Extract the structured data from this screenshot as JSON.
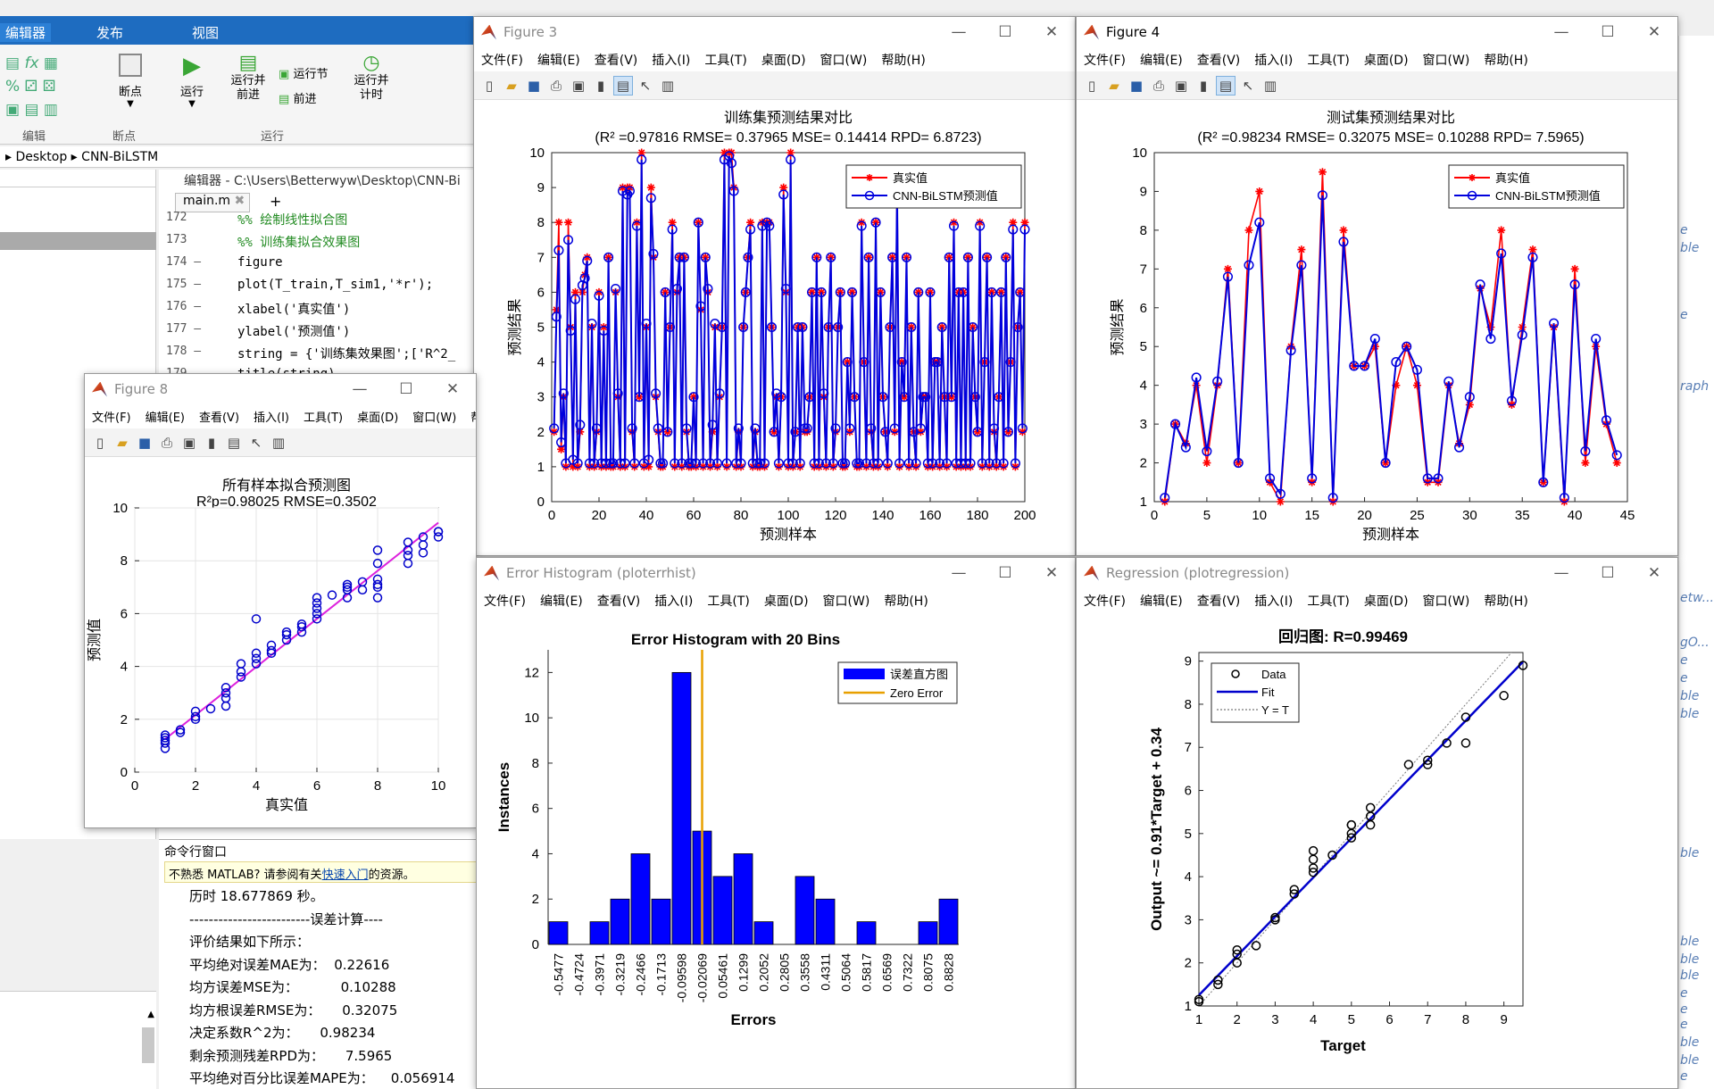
{
  "ribbon": {
    "tabs": [
      "编辑器",
      "发布",
      "视图"
    ],
    "buttons": [
      {
        "label": "断点",
        "icon": "breakpoint-icon"
      },
      {
        "label": "运行",
        "icon": "run-icon"
      },
      {
        "label": "运行并\n前进",
        "icon": "run-advance-icon"
      },
      {
        "label": "运行节",
        "icon": "run-section-icon"
      },
      {
        "label": "前进",
        "icon": "advance-icon"
      },
      {
        "label": "运行并\n计时",
        "icon": "run-time-icon"
      }
    ],
    "groups": [
      "编辑",
      "断点",
      "运行"
    ]
  },
  "path": {
    "parts": [
      "Desktop",
      "CNN-BiLSTM"
    ]
  },
  "editor": {
    "title": "编辑器 - C:\\Users\\Betterwyw\\Desktop\\CNN-Bi",
    "tab": "main.m",
    "lines": [
      {
        "n": "172",
        "code": "%% 绘制线性拟合图"
      },
      {
        "n": "173",
        "code": "%% 训练集拟合效果图"
      },
      {
        "n": "174 —",
        "code": "figure"
      },
      {
        "n": "175 —",
        "code": "plot(T_train,T_sim1,'*r');"
      },
      {
        "n": "176 —",
        "code": "xlabel('真实值')"
      },
      {
        "n": "177 —",
        "code": "ylabel('预测值')"
      },
      {
        "n": "178 —",
        "code": "string = {'训练集效果图';['R^2_"
      },
      {
        "n": "179 —",
        "code": "title(string)"
      }
    ]
  },
  "cmdwin": {
    "title": "命令行窗口",
    "notice": "不熟悉 MATLAB? 请参阅有关",
    "notice_link": "快速入门",
    "notice_end": "的资源。",
    "lines": [
      "历时 18.677869 秒。",
      "-------------------------误差计算----",
      "评价结果如下所示：",
      "平均绝对误差MAE为：  0.22616",
      "均方误差MSE为：          0.10288",
      "均方根误差RMSE为：     0.32075",
      "决定系数R^2为：     0.98234",
      "剩余预测残差RPD为：     7.5965",
      "平均绝对百分比误差MAPE为：    0.056914"
    ]
  },
  "right_fragments": [
    "e",
    "ble",
    "e",
    "raph",
    "etw...",
    "gO...",
    "e",
    "e",
    "ble",
    "ble",
    "ble",
    "ble",
    "ble",
    "ble",
    "e",
    "e",
    "e",
    "ble",
    "ble",
    "e"
  ],
  "fig3": {
    "title": "Figure 3",
    "menu": [
      "文件(F)",
      "编辑(E)",
      "查看(V)",
      "插入(I)",
      "工具(T)",
      "桌面(D)",
      "窗口(W)",
      "帮助(H)"
    ],
    "chart_data": {
      "type": "line",
      "title": "训练集预测结果对比",
      "subtitle": "(R² =0.97816 RMSE= 0.37965 MSE= 0.14414 RPD= 6.8723)",
      "xlabel": "预测样本",
      "ylabel": "预测结果",
      "xlim": [
        0,
        200
      ],
      "ylim": [
        0,
        10
      ],
      "xticks": [
        0,
        20,
        40,
        60,
        80,
        100,
        120,
        140,
        160,
        180,
        200
      ],
      "yticks": [
        0,
        1,
        2,
        3,
        4,
        5,
        6,
        7,
        8,
        9,
        10
      ],
      "legend": "top-right",
      "series": [
        {
          "name": "真实值",
          "color": "#ff0000",
          "marker": "*",
          "values": [
            2,
            5.5,
            8,
            1.5,
            3,
            1,
            8,
            5,
            1,
            6,
            1,
            2,
            6,
            6.5,
            7,
            1,
            5,
            1,
            2,
            6,
            1,
            5,
            1,
            7,
            1,
            1,
            6,
            3,
            1,
            9,
            1,
            9,
            9,
            2,
            1,
            8,
            3,
            10,
            1,
            5,
            1,
            9,
            7,
            3,
            2,
            1,
            1,
            6,
            2,
            5,
            8,
            1,
            6,
            7,
            1,
            7,
            2,
            1,
            1,
            3,
            1,
            8,
            5.5,
            1,
            7,
            6,
            1,
            2,
            5,
            1,
            3,
            5,
            10,
            1,
            10,
            10,
            9,
            1,
            2,
            1,
            5,
            6,
            7,
            8,
            1,
            2,
            1,
            1,
            8,
            1,
            8,
            8,
            5,
            2,
            3,
            1,
            3,
            9,
            6,
            1,
            10,
            1,
            2,
            5,
            1,
            5,
            2,
            2,
            3,
            6,
            1,
            7,
            1,
            6,
            3,
            1,
            5,
            7,
            1,
            2,
            5,
            6,
            1,
            1,
            4,
            2,
            6,
            3,
            1,
            1,
            8,
            4,
            1,
            7,
            2,
            1,
            8,
            1,
            6,
            3,
            2,
            1,
            5,
            7,
            2,
            9,
            1,
            4,
            3,
            7,
            1,
            5,
            2,
            1,
            6,
            2,
            3,
            3,
            1,
            6,
            1,
            4,
            4,
            1,
            5,
            3,
            1,
            7,
            3,
            8,
            1,
            6,
            1,
            6,
            1,
            7,
            1,
            5,
            3,
            2,
            8,
            1,
            4,
            7,
            1,
            6,
            2,
            1,
            3,
            6,
            1,
            7,
            2,
            4,
            8,
            1,
            5,
            6,
            2,
            8
          ]
        },
        {
          "name": "CNN-BiLSTM预测值",
          "color": "#0000dd",
          "marker": "o",
          "values": [
            2.1,
            5.3,
            7.2,
            1.7,
            3.1,
            1.1,
            7.5,
            4.9,
            1.2,
            5.8,
            1.1,
            2.2,
            6.2,
            6.4,
            6.9,
            1.1,
            5.1,
            1.1,
            2.1,
            5.9,
            1.1,
            4.9,
            1.1,
            7,
            1.1,
            1.1,
            6.1,
            3.1,
            1.1,
            8.9,
            1.1,
            8.8,
            8.9,
            2.1,
            1.1,
            7.9,
            3,
            9.8,
            1.1,
            5.1,
            1.2,
            8.7,
            7.1,
            3.1,
            2.1,
            1.1,
            1.1,
            6,
            2,
            5,
            7.8,
            1.1,
            6.1,
            7,
            1.1,
            7,
            2.1,
            1.1,
            1.1,
            3,
            1.1,
            8,
            5.6,
            1.1,
            7,
            6.1,
            1.1,
            2.2,
            5.1,
            1.1,
            3.1,
            5,
            9.8,
            1.1,
            9.9,
            9.7,
            8.9,
            1.1,
            2.1,
            1.1,
            5,
            6,
            7,
            7.8,
            1.1,
            2.1,
            1.1,
            1.1,
            7.9,
            1.1,
            8,
            7.9,
            5,
            2,
            3.1,
            1.1,
            3,
            8.8,
            6.1,
            1.1,
            9.8,
            1.1,
            2,
            5,
            1.1,
            5,
            2.1,
            2.1,
            3,
            6,
            1.1,
            7,
            1.1,
            6,
            3.1,
            1.1,
            5,
            7,
            1.1,
            2.1,
            5,
            6,
            1.1,
            1.1,
            4,
            2.1,
            6,
            3,
            1.1,
            1.1,
            7.9,
            4,
            1.1,
            7,
            2.1,
            1.1,
            8,
            1.1,
            6,
            3,
            2,
            1.1,
            5,
            7,
            2.1,
            8.9,
            1.1,
            4,
            3,
            7,
            1.1,
            5,
            2,
            1.1,
            6,
            2.1,
            3,
            3,
            1.1,
            6,
            1.1,
            4,
            4,
            1.1,
            5,
            3,
            1.1,
            7,
            3,
            7.9,
            1.1,
            6,
            1.1,
            6,
            1.1,
            7,
            1.1,
            5,
            3,
            2,
            7.9,
            1.1,
            4,
            7,
            1.1,
            6,
            2.1,
            1.1,
            3,
            6,
            1.1,
            7,
            2,
            4,
            7.8,
            1.1,
            5,
            6,
            2.1,
            7.8
          ]
        }
      ]
    }
  },
  "fig4": {
    "title": "Figure 4",
    "menu": [
      "文件(F)",
      "编辑(E)",
      "查看(V)",
      "插入(I)",
      "工具(T)",
      "桌面(D)",
      "窗口(W)",
      "帮助(H)"
    ],
    "chart_data": {
      "type": "line",
      "title": "测试集预测结果对比",
      "subtitle": "(R² =0.98234 RMSE= 0.32075 MSE= 0.10288 RPD= 7.5965)",
      "xlabel": "预测样本",
      "ylabel": "预测结果",
      "xlim": [
        0,
        45
      ],
      "ylim": [
        1,
        10
      ],
      "xticks": [
        0,
        5,
        10,
        15,
        20,
        25,
        30,
        35,
        40,
        45
      ],
      "yticks": [
        1,
        2,
        3,
        4,
        5,
        6,
        7,
        8,
        9,
        10
      ],
      "legend": "top-right",
      "series": [
        {
          "name": "真实值",
          "color": "#ff0000",
          "marker": "*",
          "values": [
            1,
            3,
            2.5,
            4,
            2,
            4,
            7,
            2,
            8,
            9,
            1.5,
            1,
            5,
            7.5,
            1.5,
            9.5,
            1,
            8,
            4.5,
            4.5,
            5,
            2,
            4,
            5,
            4,
            1.5,
            1.5,
            4,
            2.5,
            3.5,
            6.5,
            5.5,
            8,
            3.5,
            5.5,
            7.5,
            1.5,
            5.5,
            1,
            7,
            2,
            5,
            3,
            2
          ]
        },
        {
          "name": "CNN-BiLSTM预测值",
          "color": "#0000dd",
          "marker": "o",
          "values": [
            1.1,
            3,
            2.4,
            4.2,
            2.3,
            4.1,
            6.8,
            2,
            7.1,
            8.2,
            1.6,
            1.2,
            4.9,
            7.1,
            1.6,
            8.9,
            1.1,
            7.7,
            4.5,
            4.5,
            5.2,
            2,
            4.6,
            5,
            4.4,
            1.6,
            1.6,
            4.1,
            2.4,
            3.7,
            6.6,
            5.2,
            7.4,
            3.6,
            5.3,
            7.3,
            1.5,
            5.6,
            1.1,
            6.6,
            2.3,
            5.2,
            3.1,
            2.2
          ]
        }
      ]
    }
  },
  "fig8": {
    "title": "Figure 8",
    "menu": [
      "文件(F)",
      "编辑(E)",
      "查看(V)",
      "插入(I)",
      "工具(T)",
      "桌面(D)",
      "窗口(W)",
      "帮助(H)"
    ],
    "chart_data": {
      "type": "scatter",
      "title": "所有样本拟合预测图",
      "subtitle": "R²p=0.98025  RMSE=0.3502",
      "xlabel": "真实值",
      "ylabel": "预测值",
      "xlim": [
        0,
        10
      ],
      "ylim": [
        0,
        10
      ],
      "xticks": [
        0,
        2,
        4,
        6,
        8,
        10
      ],
      "yticks": [
        0,
        2,
        4,
        6,
        8,
        10
      ],
      "fit": {
        "slope": 0.91,
        "intercept": 0.34,
        "color": "#dd22dd"
      },
      "x": [
        1,
        1,
        1,
        1,
        1,
        1.5,
        1.5,
        2,
        2,
        2,
        2.5,
        3,
        3,
        3,
        3,
        3.5,
        3.5,
        3.5,
        4,
        4,
        4,
        4,
        4.5,
        4.5,
        4.5,
        5,
        5,
        5,
        5.5,
        5.5,
        5.5,
        6,
        6,
        6,
        6,
        6,
        6.5,
        7,
        7,
        7,
        7,
        7.5,
        7.5,
        8,
        8,
        8,
        8,
        8,
        8,
        9,
        9,
        9,
        9,
        9.5,
        9.5,
        9.5,
        10,
        10,
        10
      ],
      "y": [
        0.9,
        1.1,
        1.2,
        1.3,
        1.4,
        1.5,
        1.6,
        2,
        2.1,
        2.3,
        2.4,
        2.5,
        2.8,
        3,
        3.2,
        3.6,
        3.8,
        4.1,
        4.1,
        4.3,
        4.5,
        5.8,
        4.5,
        4.6,
        4.8,
        5,
        5.2,
        5.3,
        5.3,
        5.5,
        5.6,
        5.8,
        6,
        6.2,
        6.4,
        6.6,
        6.7,
        6.6,
        6.9,
        7,
        7.1,
        6.9,
        7.2,
        6.6,
        7,
        7.1,
        7.3,
        7.9,
        8.4,
        7.9,
        8.2,
        8.4,
        8.7,
        8.3,
        8.6,
        8.9,
        8.9,
        9.1,
        9.1
      ]
    }
  },
  "fig_err": {
    "title": "Error Histogram (ploterrhist)",
    "menu": [
      "文件(F)",
      "编辑(E)",
      "查看(V)",
      "插入(I)",
      "工具(T)",
      "桌面(D)",
      "窗口(W)",
      "帮助(H)"
    ],
    "chart_data": {
      "type": "bar",
      "title": "Error Histogram with 20 Bins",
      "xlabel": "Errors",
      "ylabel": "Instances",
      "ylim": [
        0,
        13
      ],
      "yticks": [
        0,
        2,
        4,
        6,
        8,
        10,
        12
      ],
      "categories": [
        "-0.5477",
        "-0.4724",
        "-0.3971",
        "-0.3219",
        "-0.2466",
        "-0.1713",
        "-0.09598",
        "-0.02069",
        "0.05461",
        "0.1299",
        "0.2052",
        "0.2805",
        "0.3558",
        "0.4311",
        "0.5064",
        "0.5817",
        "0.6569",
        "0.7322",
        "0.8075",
        "0.8828"
      ],
      "values": [
        1,
        0,
        1,
        2,
        4,
        2,
        12,
        5,
        3,
        4,
        1,
        0,
        3,
        2,
        0,
        1,
        0,
        0,
        1,
        2
      ],
      "zero_error": -0.02069,
      "legend": "top-right",
      "series": [
        {
          "name": "误差直方图",
          "color": "#0000ff"
        },
        {
          "name": "Zero Error",
          "color": "#e8a000"
        }
      ]
    }
  },
  "fig_reg": {
    "title": "Regression (plotregression)",
    "menu": [
      "文件(F)",
      "编辑(E)",
      "查看(V)",
      "插入(I)",
      "工具(T)",
      "桌面(D)",
      "窗口(W)",
      "帮助(H)"
    ],
    "chart_data": {
      "type": "scatter",
      "title": "回归图: R=0.99469",
      "xlabel": "Target",
      "ylabel": "Output ~= 0.91*Target + 0.34",
      "xlim": [
        1,
        9.5
      ],
      "ylim": [
        1,
        9.2
      ],
      "xticks": [
        1,
        2,
        3,
        4,
        5,
        6,
        7,
        8,
        9
      ],
      "yticks": [
        1,
        2,
        3,
        4,
        5,
        6,
        7,
        8,
        9
      ],
      "fit": {
        "slope": 0.91,
        "intercept": 0.34
      },
      "legend": "top-left",
      "series": [
        {
          "name": "Data"
        },
        {
          "name": "Fit",
          "color": "#0000cc"
        },
        {
          "name": "Y = T"
        }
      ],
      "x": [
        1,
        1,
        1.5,
        1.5,
        2,
        2,
        2,
        2.5,
        3,
        3,
        3.5,
        3.5,
        4,
        4,
        4,
        4,
        4.5,
        5,
        5,
        5,
        5,
        5.5,
        5.5,
        5.5,
        6.5,
        7,
        7,
        7.5,
        8,
        8,
        9,
        9.5
      ],
      "y": [
        1.1,
        1.15,
        1.5,
        1.6,
        2,
        2.2,
        2.3,
        2.4,
        3,
        3.05,
        3.6,
        3.7,
        4.1,
        4.2,
        4.4,
        4.6,
        4.5,
        4.9,
        5,
        5.2,
        5.2,
        5.2,
        5.4,
        5.6,
        6.6,
        6.6,
        6.7,
        7.1,
        7.1,
        7.7,
        8.2,
        8.9
      ]
    }
  }
}
